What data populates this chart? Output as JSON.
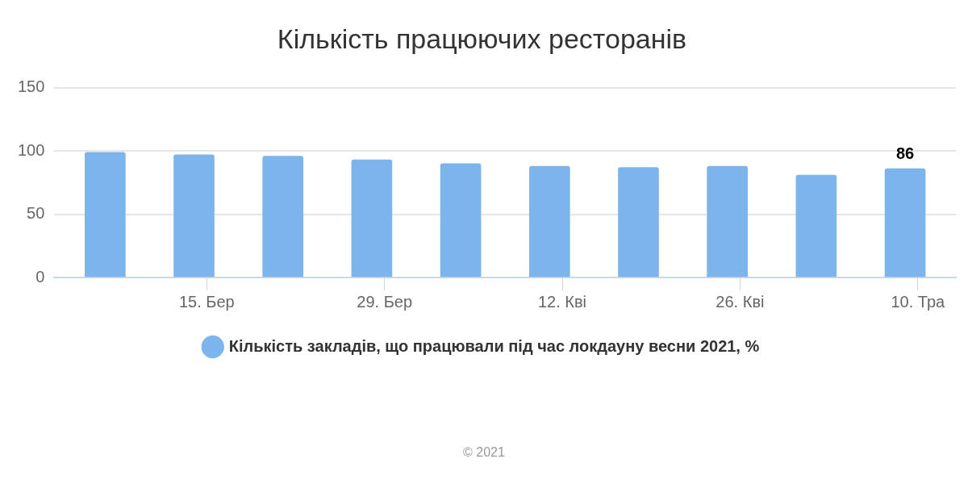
{
  "chart_data": {
    "type": "bar",
    "title": "Кількість працюючих ресторанів",
    "x": [
      "2021-03-07",
      "2021-03-14",
      "2021-03-21",
      "2021-03-28",
      "2021-04-04",
      "2021-04-11",
      "2021-04-18",
      "2021-04-25",
      "2021-05-02",
      "2021-05-09"
    ],
    "series": [
      {
        "name": "Кількість закладів, що працювали під час локдауну весни 2021, %",
        "color": "#7cb5ec",
        "values": [
          99,
          97,
          96,
          93,
          90,
          88,
          87,
          88,
          81,
          86
        ],
        "value_labels": [
          null,
          null,
          null,
          null,
          null,
          null,
          null,
          null,
          null,
          "86"
        ]
      }
    ],
    "xlim": [
      "2021-03-03",
      "2021-05-13"
    ],
    "xticks": [
      {
        "value": "2021-03-15",
        "label": "15. Бер"
      },
      {
        "value": "2021-03-29",
        "label": "29. Бер"
      },
      {
        "value": "2021-04-12",
        "label": "12. Кві"
      },
      {
        "value": "2021-04-26",
        "label": "26. Кві"
      },
      {
        "value": "2021-05-10",
        "label": "10. Тра"
      }
    ],
    "ylim": [
      0,
      150
    ],
    "yticks": [
      0,
      50,
      100,
      150
    ],
    "grid": "y",
    "legend": "bottom",
    "annotations": [
      "© 2021"
    ]
  }
}
